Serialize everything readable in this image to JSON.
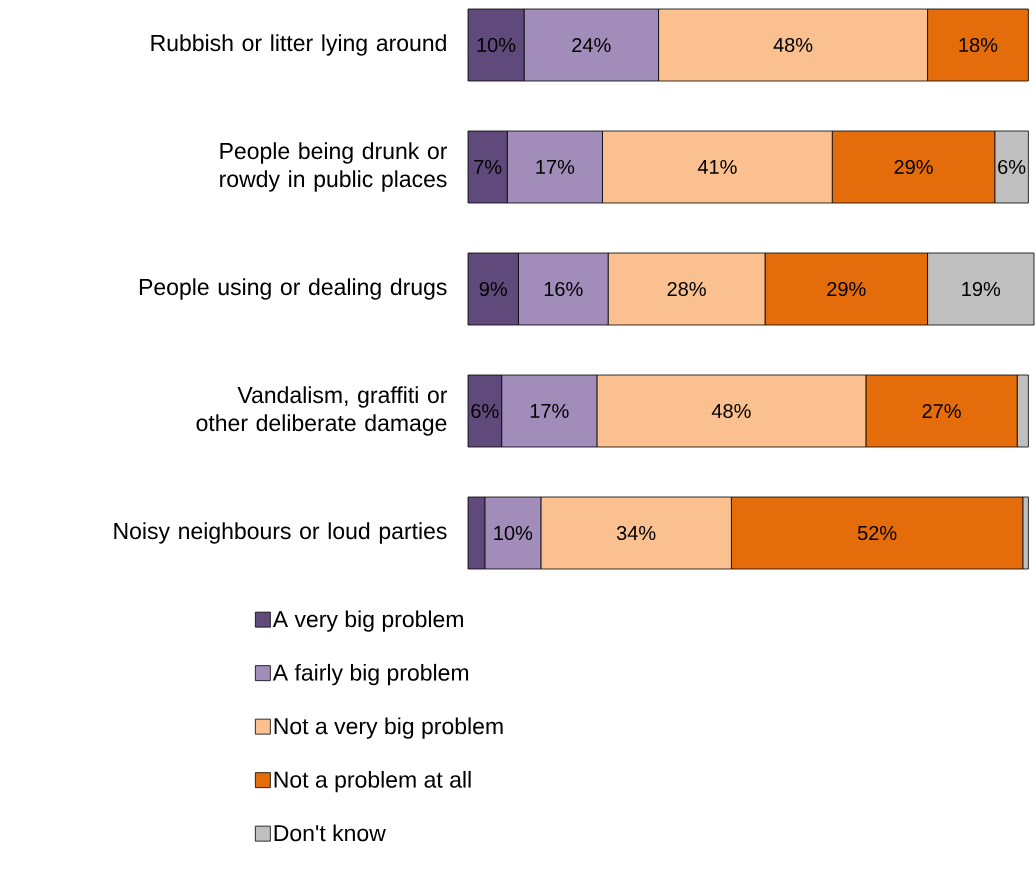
{
  "chart_data": {
    "type": "bar",
    "orientation": "horizontal",
    "stacked": true,
    "categories": [
      "Rubbish or litter lying around",
      "People being drunk or rowdy in public places",
      "People using or dealing drugs",
      "Vandalism, graffiti or other deliberate damage",
      "Noisy neighbours or loud parties"
    ],
    "legend": "bottom",
    "series": [
      {
        "name": "A very big problem",
        "color": "#604a7b",
        "values": [
          10,
          7,
          9,
          6,
          3
        ],
        "value_labels": [
          "10%",
          "7%",
          "9%",
          "6%",
          null
        ]
      },
      {
        "name": "A fairly big problem",
        "color": "#a18cba",
        "values": [
          24,
          17,
          16,
          17,
          10
        ],
        "value_labels": [
          "24%",
          "17%",
          "16%",
          "17%",
          "10%"
        ]
      },
      {
        "name": "Not a very big problem",
        "color": "#fac090",
        "values": [
          48,
          41,
          28,
          48,
          34
        ],
        "value_labels": [
          "48%",
          "41%",
          "28%",
          "48%",
          "34%"
        ]
      },
      {
        "name": "Not a problem at all",
        "color": "#e46c0a",
        "values": [
          18,
          29,
          29,
          27,
          52
        ],
        "value_labels": [
          "18%",
          "29%",
          "29%",
          "27%",
          "52%"
        ]
      },
      {
        "name": "Don't know",
        "color": "#bfbfbf",
        "values": [
          0,
          6,
          19,
          2,
          1
        ],
        "value_labels": [
          null,
          "6%",
          "19%",
          null,
          null
        ]
      }
    ]
  }
}
